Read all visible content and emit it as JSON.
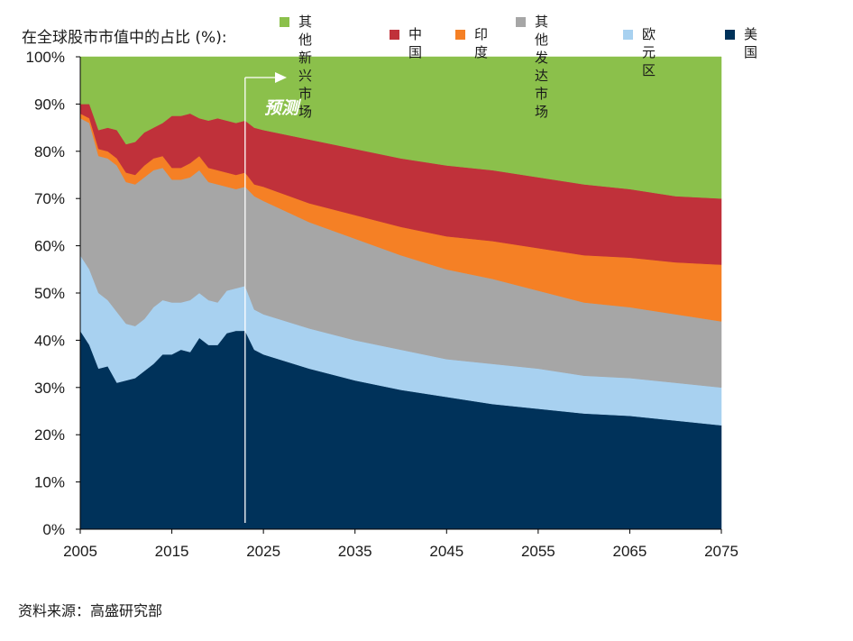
{
  "chart_data": {
    "type": "area",
    "stacked": true,
    "title": "在全球股市市值中的占比 (%):",
    "xlabel": "",
    "ylabel": "",
    "xlim": [
      2005,
      2075
    ],
    "ylim": [
      0,
      100
    ],
    "x_ticks": [
      "2005",
      "2015",
      "2025",
      "2035",
      "2045",
      "2055",
      "2065",
      "2075"
    ],
    "y_ticks": [
      "0%",
      "10%",
      "20%",
      "30%",
      "40%",
      "50%",
      "60%",
      "70%",
      "80%",
      "90%",
      "100%"
    ],
    "forecast_start": 2023,
    "forecast_label": "预测",
    "x": [
      2005,
      2006,
      2007,
      2008,
      2009,
      2010,
      2011,
      2012,
      2013,
      2014,
      2015,
      2016,
      2017,
      2018,
      2019,
      2020,
      2021,
      2022,
      2023,
      2024,
      2025,
      2030,
      2035,
      2040,
      2045,
      2050,
      2055,
      2060,
      2065,
      2070,
      2075
    ],
    "series": [
      {
        "name": "美国",
        "color": "#00325a",
        "values": [
          42,
          39,
          34,
          34.5,
          31,
          31.5,
          32,
          33.5,
          35,
          37,
          37,
          38,
          37.5,
          40.5,
          39,
          39,
          41.5,
          42,
          42,
          38,
          37,
          34,
          31.5,
          29.5,
          28,
          26.5,
          25.5,
          24.5,
          24,
          23,
          22
        ]
      },
      {
        "name": "欧元区",
        "color": "#a8d1f0",
        "values": [
          16,
          16,
          16,
          14,
          15,
          12,
          11,
          11,
          12,
          11.5,
          11,
          10,
          11,
          9.5,
          9.5,
          9,
          9,
          9,
          9.5,
          8.5,
          8.5,
          8.5,
          8.5,
          8.5,
          8,
          8.5,
          8.5,
          8,
          8,
          8,
          8
        ]
      },
      {
        "name": "其他\n发达市场",
        "color": "#a6a6a6",
        "values": [
          29,
          31,
          29,
          30,
          31,
          30,
          30,
          30,
          29,
          28,
          26,
          26,
          26,
          26,
          25,
          25,
          22,
          21,
          21,
          24,
          24,
          22.5,
          21.5,
          20,
          19,
          18,
          16.5,
          15.5,
          15,
          14.5,
          14
        ]
      },
      {
        "name": "印度",
        "color": "#f58025",
        "values": [
          1,
          1,
          1.5,
          1.5,
          1.5,
          2,
          2,
          2.5,
          2.5,
          2.5,
          2.5,
          2.5,
          3,
          3,
          3,
          3,
          3,
          3,
          3,
          2.5,
          3,
          4,
          5,
          6,
          7,
          8,
          9,
          10,
          10.5,
          11,
          12
        ]
      },
      {
        "name": "中国",
        "color": "#c0313a",
        "values": [
          2,
          3,
          4,
          5,
          6,
          6,
          7,
          7,
          6.5,
          7,
          11,
          11,
          10.5,
          8,
          10,
          11,
          11,
          11,
          11,
          12,
          12,
          13.5,
          14,
          14.5,
          15,
          15,
          15,
          15,
          14.5,
          14,
          14
        ]
      },
      {
        "name": "其他\n新兴市场",
        "color": "#8bc04b",
        "values": [
          10,
          10,
          15.5,
          15,
          15.5,
          18.5,
          18,
          16,
          15,
          14,
          12.5,
          12.5,
          12,
          13,
          13.5,
          13,
          13.5,
          14,
          13.5,
          15,
          15.5,
          17.5,
          19.5,
          21.5,
          23,
          24,
          25.5,
          27,
          28,
          29.5,
          30
        ]
      }
    ]
  },
  "legend_order": [
    "其他\n新兴市场",
    "中国",
    "印度",
    "其他\n发达市场",
    "欧元区",
    "美国"
  ],
  "source": "资料来源：高盛研究部"
}
